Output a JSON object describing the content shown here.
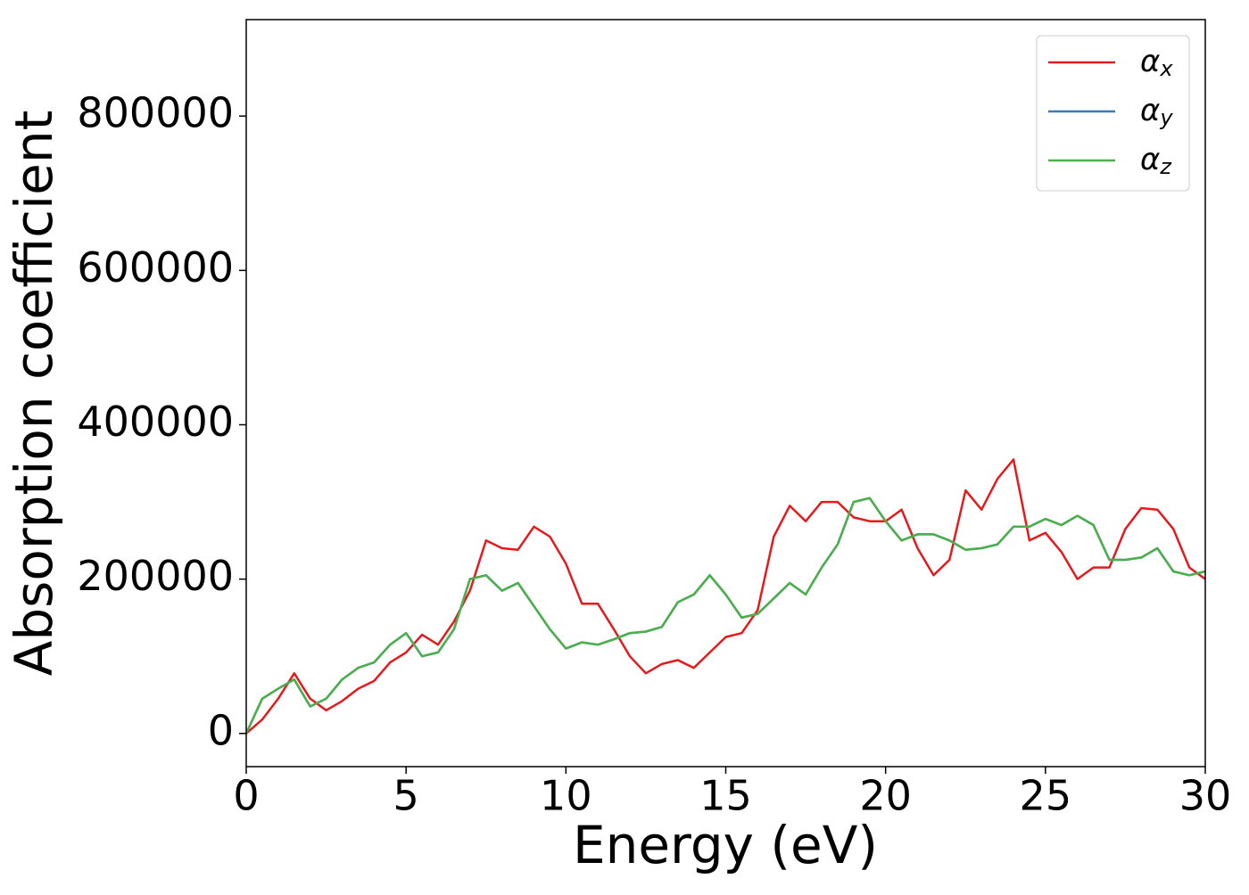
{
  "chart_data": {
    "type": "line",
    "x_label": "Energy (eV)",
    "y_label": "Absorption coefficient",
    "x": [
      0,
      0.5,
      1,
      1.5,
      2,
      2.5,
      3,
      3.5,
      4,
      4.5,
      5,
      5.5,
      6,
      6.5,
      7,
      7.5,
      8,
      8.5,
      9,
      9.5,
      10,
      10.5,
      11,
      11.5,
      12,
      12.5,
      13,
      13.5,
      14,
      14.5,
      15,
      15.5,
      16,
      16.5,
      17,
      17.5,
      18,
      18.5,
      19,
      19.5,
      20,
      20.5,
      21,
      21.5,
      22,
      22.5,
      23,
      23.5,
      24,
      24.5,
      25,
      25.5,
      26,
      26.5,
      27,
      27.5,
      28,
      28.5,
      29,
      29.5,
      30
    ],
    "series": [
      {
        "name": "αx",
        "color": "#e41a1c",
        "values": [
          0,
          18000,
          45000,
          78000,
          45000,
          30000,
          42000,
          58000,
          68000,
          92000,
          105000,
          128000,
          115000,
          145000,
          185000,
          250000,
          240000,
          238000,
          268000,
          255000,
          220000,
          168000,
          168000,
          135000,
          100000,
          78000,
          90000,
          95000,
          85000,
          105000,
          125000,
          130000,
          160000,
          255000,
          295000,
          275000,
          300000,
          300000,
          280000,
          275000,
          275000,
          290000,
          240000,
          205000,
          225000,
          315000,
          290000,
          330000,
          355000,
          250000,
          260000,
          235000,
          200000,
          215000,
          215000,
          265000,
          292000,
          290000,
          265000,
          215000,
          200000
        ]
      },
      {
        "name": "αy",
        "color": "#377eb8",
        "values": [
          0,
          45000,
          58000,
          70000,
          35000,
          45000,
          70000,
          85000,
          92000,
          115000,
          130000,
          100000,
          105000,
          135000,
          200000,
          205000,
          185000,
          195000,
          165000,
          135000,
          110000,
          118000,
          115000,
          122000,
          130000,
          132000,
          138000,
          170000,
          180000,
          205000,
          180000,
          150000,
          155000,
          175000,
          195000,
          180000,
          215000,
          245000,
          300000,
          305000,
          275000,
          250000,
          258000,
          258000,
          250000,
          238000,
          240000,
          245000,
          268000,
          268000,
          278000,
          270000,
          282000,
          270000,
          225000,
          225000,
          228000,
          240000,
          210000,
          205000,
          210000
        ]
      },
      {
        "name": "αz",
        "color": "#4daf4a",
        "values": [
          0,
          45000,
          58000,
          70000,
          35000,
          45000,
          70000,
          85000,
          92000,
          115000,
          130000,
          100000,
          105000,
          135000,
          200000,
          205000,
          185000,
          195000,
          165000,
          135000,
          110000,
          118000,
          115000,
          122000,
          130000,
          132000,
          138000,
          170000,
          180000,
          205000,
          180000,
          150000,
          155000,
          175000,
          195000,
          180000,
          215000,
          245000,
          300000,
          305000,
          275000,
          250000,
          258000,
          258000,
          250000,
          238000,
          240000,
          245000,
          268000,
          268000,
          278000,
          270000,
          282000,
          270000,
          225000,
          225000,
          228000,
          240000,
          210000,
          205000,
          210000
        ]
      }
    ],
    "xlim": [
      0,
      30
    ],
    "xticks": [
      0,
      5,
      10,
      15,
      20,
      25,
      30
    ],
    "ylim": [
      -43000,
      925000
    ],
    "yticks": [
      0,
      200000,
      400000,
      600000,
      800000
    ],
    "grid": false,
    "legend": "upper right"
  }
}
